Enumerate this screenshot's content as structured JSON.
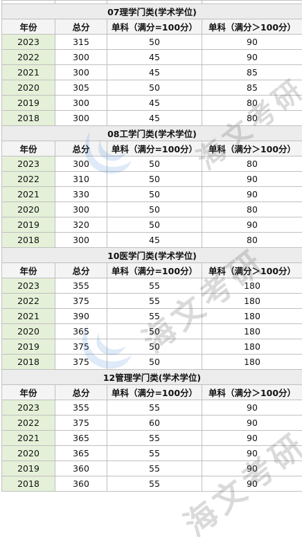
{
  "watermark": {
    "text": "海文考研",
    "color": "#3b7fd6"
  },
  "columns": [
    "年份",
    "总分",
    "单科（满分=100分）",
    "单科（满分＞100分）"
  ],
  "sections": [
    {
      "title": "07理学门类(学术学位)",
      "rows": [
        [
          "2023",
          "315",
          "50",
          "90"
        ],
        [
          "2022",
          "300",
          "45",
          "90"
        ],
        [
          "2021",
          "300",
          "45",
          "85"
        ],
        [
          "2020",
          "305",
          "50",
          "85"
        ],
        [
          "2019",
          "300",
          "45",
          "80"
        ],
        [
          "2018",
          "300",
          "45",
          "80"
        ]
      ]
    },
    {
      "title": "08工学门类(学术学位)",
      "rows": [
        [
          "2023",
          "300",
          "50",
          "80"
        ],
        [
          "2022",
          "310",
          "50",
          "90"
        ],
        [
          "2021",
          "330",
          "50",
          "90"
        ],
        [
          "2020",
          "300",
          "50",
          "80"
        ],
        [
          "2019",
          "320",
          "50",
          "90"
        ],
        [
          "2018",
          "300",
          "45",
          "80"
        ]
      ]
    },
    {
      "title": "10医学门类(学术学位)",
      "rows": [
        [
          "2023",
          "355",
          "55",
          "180"
        ],
        [
          "2022",
          "375",
          "55",
          "180"
        ],
        [
          "2021",
          "390",
          "55",
          "180"
        ],
        [
          "2020",
          "365",
          "50",
          "180"
        ],
        [
          "2019",
          "375",
          "50",
          "180"
        ],
        [
          "2018",
          "375",
          "50",
          "180"
        ]
      ]
    },
    {
      "title": "12管理学门类(学术学位)",
      "rows": [
        [
          "2023",
          "355",
          "55",
          "90"
        ],
        [
          "2022",
          "375",
          "60",
          "90"
        ],
        [
          "2021",
          "365",
          "55",
          "90"
        ],
        [
          "2020",
          "365",
          "55",
          "90"
        ],
        [
          "2019",
          "360",
          "55",
          "90"
        ],
        [
          "2018",
          "360",
          "55",
          "90"
        ]
      ]
    }
  ]
}
